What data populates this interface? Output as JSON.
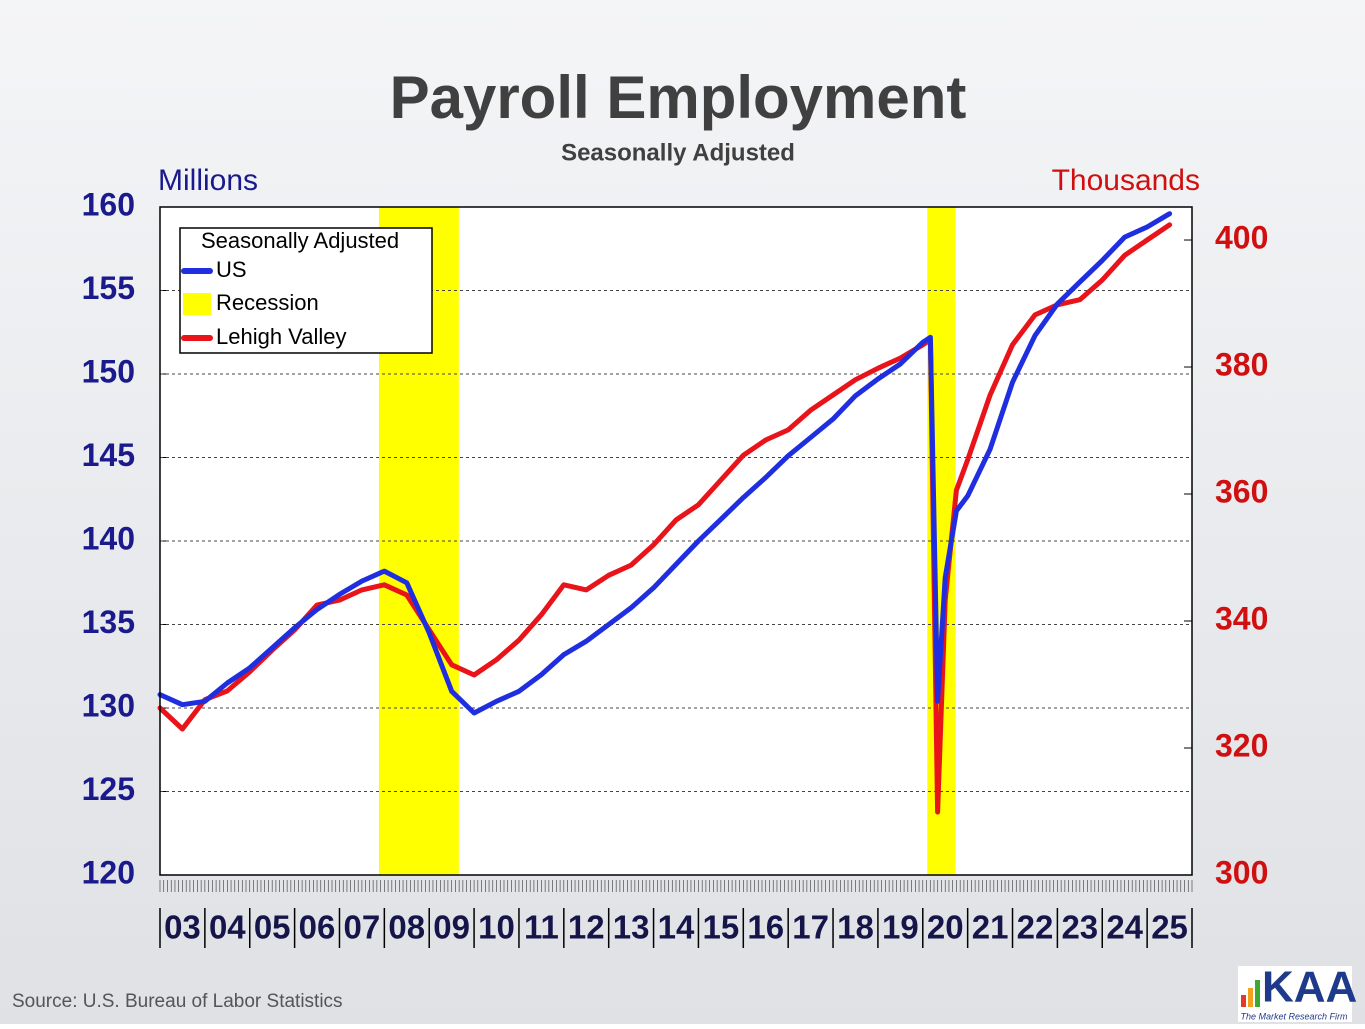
{
  "chart_data": {
    "type": "line",
    "title": "Payroll Employment",
    "subtitle": "Seasonally Adjusted",
    "y_label": "Millions",
    "y2_label": "Thousands",
    "legend_title": "Seasonally Adjusted",
    "source": "Source: U.S. Bureau of Labor Statistics",
    "logo": "KAA",
    "logo_tagline": "The Market Research Firm",
    "xlim": [
      2003,
      2026
    ],
    "ylim": [
      120,
      160
    ],
    "yticks": [
      120,
      125,
      130,
      135,
      140,
      145,
      150,
      155,
      160
    ],
    "y2lim": [
      300,
      405.2
    ],
    "y2ticks": [
      300,
      320,
      340,
      360,
      380,
      400
    ],
    "grid": true,
    "xticks": [
      {
        "value": 2003.5,
        "label": "03"
      },
      {
        "value": 2004.5,
        "label": "04"
      },
      {
        "value": 2005.5,
        "label": "05"
      },
      {
        "value": 2006.5,
        "label": "06"
      },
      {
        "value": 2007.5,
        "label": "07"
      },
      {
        "value": 2008.5,
        "label": "08"
      },
      {
        "value": 2009.5,
        "label": "09"
      },
      {
        "value": 2010.5,
        "label": "10"
      },
      {
        "value": 2011.5,
        "label": "11"
      },
      {
        "value": 2012.5,
        "label": "12"
      },
      {
        "value": 2013.5,
        "label": "13"
      },
      {
        "value": 2014.5,
        "label": "14"
      },
      {
        "value": 2015.5,
        "label": "15"
      },
      {
        "value": 2016.5,
        "label": "16"
      },
      {
        "value": 2017.5,
        "label": "17"
      },
      {
        "value": 2018.5,
        "label": "18"
      },
      {
        "value": 2019.5,
        "label": "19"
      },
      {
        "value": 2020.5,
        "label": "20"
      },
      {
        "value": 2021.5,
        "label": "21"
      },
      {
        "value": 2022.5,
        "label": "22"
      },
      {
        "value": 2023.5,
        "label": "23"
      },
      {
        "value": 2024.5,
        "label": "24"
      },
      {
        "value": 2025.5,
        "label": "25"
      }
    ],
    "bands": {
      "name": "Recession",
      "color": "#ffff00",
      "ranges": [
        [
          2007.88,
          2009.66
        ],
        [
          2020.1,
          2020.73
        ]
      ]
    },
    "series": [
      {
        "name": "US",
        "color": "#1f2fe0",
        "axis": "y",
        "x": [
          2003.0,
          2003.5,
          2004.0,
          2004.5,
          2005.0,
          2005.5,
          2006.0,
          2006.5,
          2007.0,
          2007.5,
          2008.0,
          2008.5,
          2009.0,
          2009.5,
          2010.0,
          2010.5,
          2011.0,
          2011.5,
          2012.0,
          2012.5,
          2013.0,
          2013.5,
          2014.0,
          2014.5,
          2015.0,
          2015.5,
          2016.0,
          2016.5,
          2017.0,
          2017.5,
          2018.0,
          2018.5,
          2019.0,
          2019.5,
          2020.0,
          2020.17,
          2020.33,
          2020.5,
          2020.75,
          2021.0,
          2021.5,
          2022.0,
          2022.5,
          2023.0,
          2023.5,
          2024.0,
          2024.5,
          2025.0,
          2025.5
        ],
        "values": [
          130.8,
          130.2,
          130.4,
          131.5,
          132.4,
          133.6,
          134.8,
          135.9,
          136.8,
          137.6,
          138.2,
          137.5,
          134.5,
          131.0,
          129.7,
          130.4,
          131.0,
          132.0,
          133.2,
          134.0,
          135.0,
          136.0,
          137.2,
          138.6,
          140.0,
          141.3,
          142.6,
          143.8,
          145.1,
          146.2,
          147.3,
          148.7,
          149.7,
          150.6,
          151.9,
          152.2,
          130.4,
          137.8,
          141.8,
          142.7,
          145.5,
          149.5,
          152.3,
          154.2,
          155.5,
          156.8,
          158.2,
          158.8,
          159.6
        ]
      },
      {
        "name": "Lehigh Valley",
        "color": "#e8141a",
        "axis": "y2",
        "x": [
          2003.0,
          2003.5,
          2004.0,
          2004.5,
          2005.0,
          2005.5,
          2006.0,
          2006.5,
          2007.0,
          2007.5,
          2008.0,
          2008.5,
          2009.0,
          2009.5,
          2010.0,
          2010.5,
          2011.0,
          2011.5,
          2012.0,
          2012.5,
          2013.0,
          2013.5,
          2014.0,
          2014.5,
          2015.0,
          2015.5,
          2016.0,
          2016.5,
          2017.0,
          2017.5,
          2018.0,
          2018.5,
          2019.0,
          2019.5,
          2020.0,
          2020.17,
          2020.33,
          2020.5,
          2020.75,
          2021.0,
          2021.5,
          2022.0,
          2022.5,
          2023.0,
          2023.5,
          2024.0,
          2024.5,
          2025.0,
          2025.5
        ],
        "values": [
          326.3,
          323.0,
          327.6,
          329.0,
          332.0,
          335.4,
          338.6,
          342.5,
          343.3,
          344.9,
          345.7,
          344.1,
          338.6,
          333.1,
          331.5,
          333.9,
          337.0,
          341.0,
          345.7,
          344.9,
          347.2,
          348.8,
          352.0,
          355.9,
          358.3,
          362.2,
          366.1,
          368.5,
          370.1,
          373.2,
          375.6,
          378.0,
          379.8,
          381.4,
          383.5,
          384.3,
          309.9,
          343.3,
          360.6,
          365.4,
          375.6,
          383.5,
          388.2,
          389.8,
          390.6,
          393.7,
          397.6,
          400.0,
          402.4
        ]
      }
    ]
  }
}
